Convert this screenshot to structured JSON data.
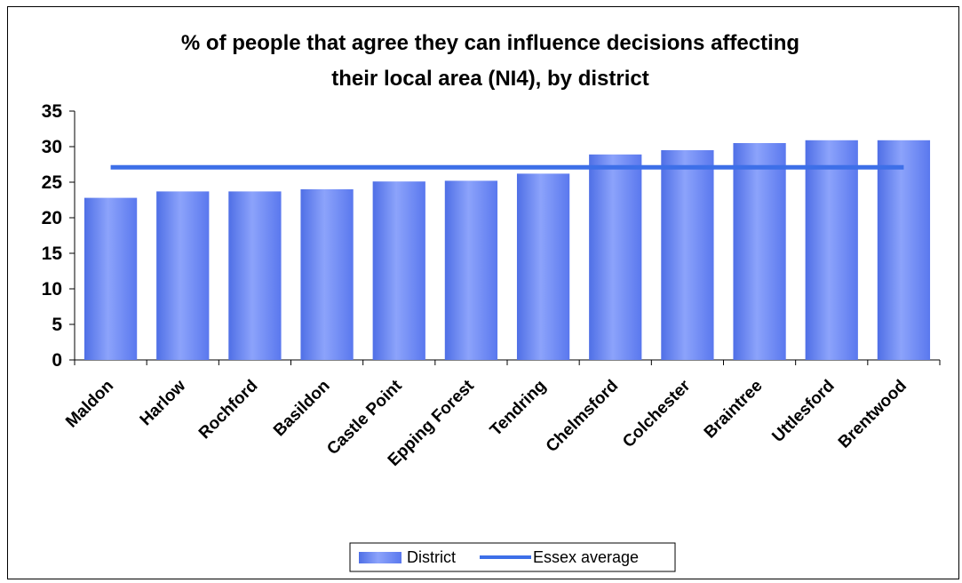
{
  "chart_data": {
    "type": "bar",
    "title_lines": [
      "% of people that agree they can influence decisions affecting",
      "their local area (NI4), by district"
    ],
    "categories": [
      "Maldon",
      "Harlow",
      "Rochford",
      "Basildon",
      "Castle Point",
      "Epping Forest",
      "Tendring",
      "Chelmsford",
      "Colchester",
      "Braintree",
      "Uttlesford",
      "Brentwood"
    ],
    "series": [
      {
        "name": "District",
        "kind": "bar",
        "color": "#6b86f5",
        "values": [
          22.8,
          23.7,
          23.7,
          24.0,
          25.1,
          25.2,
          26.2,
          28.9,
          29.5,
          30.5,
          30.9,
          30.9
        ]
      },
      {
        "name": "Essex average",
        "kind": "line",
        "color": "#3d6fe8",
        "values": [
          27.1,
          27.1,
          27.1,
          27.1,
          27.1,
          27.1,
          27.1,
          27.1,
          27.1,
          27.1,
          27.1,
          27.1
        ]
      }
    ],
    "ylim": [
      0,
      35
    ],
    "yticks": [
      "0",
      "5",
      "10",
      "15",
      "20",
      "25",
      "30",
      "35"
    ],
    "grid": false,
    "legend_position": "bottom"
  }
}
